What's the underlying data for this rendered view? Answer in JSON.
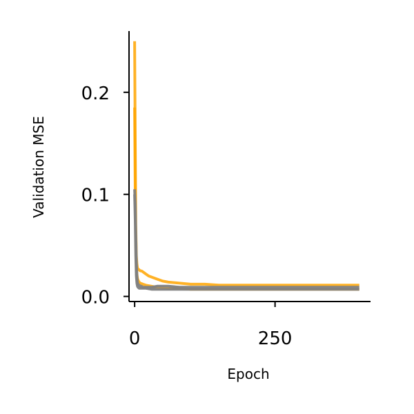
{
  "chart_data": {
    "type": "line",
    "title": "",
    "xlabel": "Epoch",
    "ylabel": "Validation MSE",
    "xlim": [
      -10,
      420
    ],
    "ylim": [
      -0.005,
      0.26
    ],
    "xticks": [
      0,
      250
    ],
    "xtick_labels": [
      "0",
      "250"
    ],
    "yticks": [
      0.0,
      0.1,
      0.2
    ],
    "ytick_labels": [
      "0.0",
      "0.1",
      "0.2"
    ],
    "grid": false,
    "legend": "none",
    "series": [
      {
        "color": "#FFA500",
        "alpha": 0.85,
        "x": [
          0,
          1,
          2,
          3,
          4,
          5,
          6,
          8,
          10,
          12,
          15,
          20,
          25,
          30,
          40,
          50,
          60,
          80,
          100,
          125,
          150,
          175,
          200,
          250,
          300,
          350,
          400
        ],
        "values": [
          0.25,
          0.15,
          0.07,
          0.04,
          0.032,
          0.028,
          0.027,
          0.026,
          0.025,
          0.025,
          0.024,
          0.022,
          0.02,
          0.019,
          0.017,
          0.015,
          0.014,
          0.013,
          0.012,
          0.012,
          0.011,
          0.011,
          0.011,
          0.011,
          0.011,
          0.011,
          0.011
        ]
      },
      {
        "color": "#FFA500",
        "alpha": 0.85,
        "x": [
          0,
          1,
          2,
          3,
          4,
          5,
          6,
          8,
          10,
          15,
          20,
          30,
          40,
          60,
          80,
          100,
          150,
          200,
          250,
          300,
          350,
          400
        ],
        "values": [
          0.185,
          0.1,
          0.05,
          0.03,
          0.022,
          0.018,
          0.016,
          0.014,
          0.013,
          0.012,
          0.011,
          0.01,
          0.009,
          0.008,
          0.008,
          0.007,
          0.007,
          0.007,
          0.007,
          0.007,
          0.007,
          0.007
        ]
      },
      {
        "color": "#808080",
        "alpha": 0.95,
        "x": [
          0,
          1,
          2,
          3,
          4,
          5,
          6,
          8,
          10,
          12,
          15,
          20,
          25,
          30,
          40,
          50,
          60,
          80,
          100,
          150,
          200,
          250,
          300,
          350,
          400
        ],
        "values": [
          0.105,
          0.09,
          0.06,
          0.035,
          0.02,
          0.014,
          0.012,
          0.011,
          0.01,
          0.01,
          0.009,
          0.009,
          0.009,
          0.009,
          0.01,
          0.01,
          0.01,
          0.009,
          0.009,
          0.009,
          0.009,
          0.009,
          0.009,
          0.009,
          0.009
        ]
      },
      {
        "color": "#808080",
        "alpha": 0.95,
        "x": [
          0,
          1,
          2,
          3,
          4,
          5,
          6,
          8,
          10,
          15,
          20,
          30,
          50,
          100,
          200,
          300,
          400
        ],
        "values": [
          0.1,
          0.075,
          0.04,
          0.02,
          0.013,
          0.01,
          0.009,
          0.008,
          0.008,
          0.008,
          0.008,
          0.007,
          0.007,
          0.007,
          0.007,
          0.007,
          0.007
        ]
      }
    ]
  }
}
